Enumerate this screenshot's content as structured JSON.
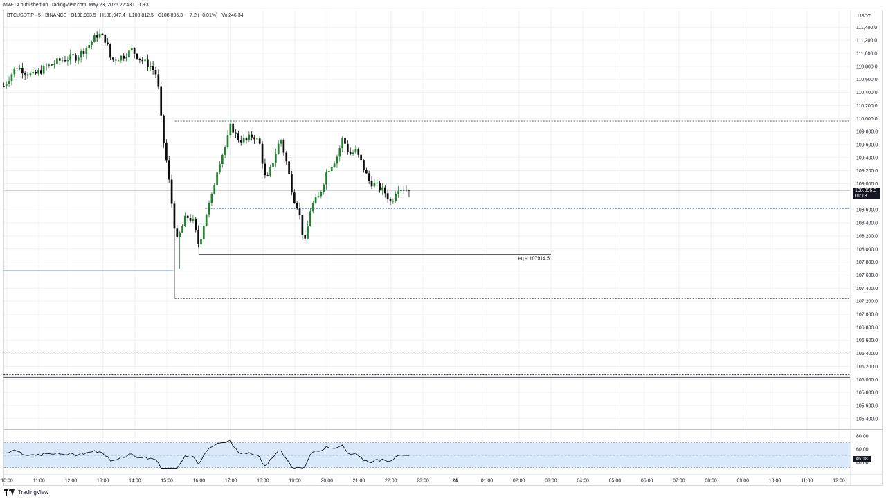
{
  "publisher_line": "MW-TA published on TradingView.com, May 23, 2025 22:43 UTC+3",
  "legend": {
    "symbol": "BTCUSDT.P · 5 · BINANCE",
    "open": "O108,903.5",
    "high": "H108,947.4",
    "low": "L108,812.5",
    "close": "C108,896.3",
    "change": "−7.2 (−0.01%)",
    "volume": "Vol246.34"
  },
  "price_axis_unit": "USDT",
  "last_price": {
    "value": "108,896.3",
    "countdown": "01:13"
  },
  "brand": "TradingView",
  "colors": {
    "up": "#22802e",
    "down": "#0c0c0c",
    "osc_band": "#d9e9fb",
    "grid": "#eef0f3"
  },
  "chart_data": {
    "type": "candlestick",
    "interval_minutes": 5,
    "y_range": [
      105200,
      111600
    ],
    "y_ticks": [
      "105,400.0",
      "105,600.0",
      "105,800.0",
      "106,000.0",
      "106,200.0",
      "106,400.0",
      "106,600.0",
      "106,800.0",
      "107,000.0",
      "107,200.0",
      "107,400.0",
      "107,600.0",
      "107,800.0",
      "108,000.0",
      "108,200.0",
      "108,400.0",
      "108,600.0",
      "109,000.0",
      "109,200.0",
      "109,400.0",
      "109,600.0",
      "109,800.0",
      "110,000.0",
      "110,200.0",
      "110,400.0",
      "110,600.0",
      "110,800.0",
      "111,000.0",
      "111,200.0",
      "111,400.0"
    ],
    "x_ticks": [
      {
        "label": "10:00",
        "t": 10
      },
      {
        "label": "11:00",
        "t": 11
      },
      {
        "label": "12:00",
        "t": 12
      },
      {
        "label": "13:00",
        "t": 13
      },
      {
        "label": "14:00",
        "t": 14
      },
      {
        "label": "15:00",
        "t": 15
      },
      {
        "label": "16:00",
        "t": 16
      },
      {
        "label": "17:00",
        "t": 17
      },
      {
        "label": "18:00",
        "t": 18
      },
      {
        "label": "19:00",
        "t": 19
      },
      {
        "label": "20:00",
        "t": 20
      },
      {
        "label": "21:00",
        "t": 21
      },
      {
        "label": "22:00",
        "t": 22
      },
      {
        "label": "23:00",
        "t": 23
      },
      {
        "label": "24",
        "t": 24
      },
      {
        "label": "01:00",
        "t": 25
      },
      {
        "label": "02:00",
        "t": 26
      },
      {
        "label": "03:00",
        "t": 27
      },
      {
        "label": "04:00",
        "t": 28
      },
      {
        "label": "05:00",
        "t": 29
      },
      {
        "label": "06:00",
        "t": 30
      },
      {
        "label": "07:00",
        "t": 31
      },
      {
        "label": "08:00",
        "t": 32
      },
      {
        "label": "09:00",
        "t": 33
      },
      {
        "label": "10:00",
        "t": 34
      },
      {
        "label": "11:00",
        "t": 35
      },
      {
        "label": "12:00",
        "t": 36
      }
    ],
    "anchors": [
      {
        "t": 9.9,
        "p": 110500
      },
      {
        "t": 10.3,
        "p": 110800
      },
      {
        "t": 10.8,
        "p": 110650
      },
      {
        "t": 11.2,
        "p": 110780
      },
      {
        "t": 11.7,
        "p": 110900
      },
      {
        "t": 12.2,
        "p": 110950
      },
      {
        "t": 12.6,
        "p": 111150
      },
      {
        "t": 12.85,
        "p": 111300
      },
      {
        "t": 13.1,
        "p": 111200
      },
      {
        "t": 13.25,
        "p": 110900
      },
      {
        "t": 13.6,
        "p": 110950
      },
      {
        "t": 13.9,
        "p": 111050
      },
      {
        "t": 14.2,
        "p": 110900
      },
      {
        "t": 14.5,
        "p": 110800
      },
      {
        "t": 14.7,
        "p": 110650
      },
      {
        "t": 14.85,
        "p": 109800
      },
      {
        "t": 15.0,
        "p": 109300
      },
      {
        "t": 15.15,
        "p": 108700
      },
      {
        "t": 15.3,
        "p": 108100
      },
      {
        "t": 15.45,
        "p": 108300
      },
      {
        "t": 15.6,
        "p": 108500
      },
      {
        "t": 15.8,
        "p": 108450
      },
      {
        "t": 16.0,
        "p": 108050
      },
      {
        "t": 16.2,
        "p": 108500
      },
      {
        "t": 16.4,
        "p": 108800
      },
      {
        "t": 16.6,
        "p": 109300
      },
      {
        "t": 16.85,
        "p": 109600
      },
      {
        "t": 17.0,
        "p": 109900
      },
      {
        "t": 17.2,
        "p": 109700
      },
      {
        "t": 17.45,
        "p": 109650
      },
      {
        "t": 17.7,
        "p": 109750
      },
      {
        "t": 17.9,
        "p": 109600
      },
      {
        "t": 18.1,
        "p": 109000
      },
      {
        "t": 18.35,
        "p": 109400
      },
      {
        "t": 18.55,
        "p": 109700
      },
      {
        "t": 18.75,
        "p": 109300
      },
      {
        "t": 18.95,
        "p": 108800
      },
      {
        "t": 19.1,
        "p": 108650
      },
      {
        "t": 19.3,
        "p": 108050
      },
      {
        "t": 19.5,
        "p": 108650
      },
      {
        "t": 19.75,
        "p": 108800
      },
      {
        "t": 20.0,
        "p": 109200
      },
      {
        "t": 20.3,
        "p": 109400
      },
      {
        "t": 20.5,
        "p": 109700
      },
      {
        "t": 20.7,
        "p": 109450
      },
      {
        "t": 20.9,
        "p": 109500
      },
      {
        "t": 21.1,
        "p": 109300
      },
      {
        "t": 21.3,
        "p": 109050
      },
      {
        "t": 21.6,
        "p": 108950
      },
      {
        "t": 21.85,
        "p": 108850
      },
      {
        "t": 22.0,
        "p": 108700
      },
      {
        "t": 22.2,
        "p": 108950
      },
      {
        "t": 22.45,
        "p": 108920
      },
      {
        "t": 22.6,
        "p": 108896
      }
    ],
    "levels": [
      {
        "name": "range-high",
        "price": 109960,
        "t_start": 15.25,
        "style": "dotted",
        "color": "#555b66"
      },
      {
        "name": "range-low",
        "price": 107240,
        "t_start": 15.25,
        "style": "dotted",
        "color": "#555b66"
      },
      {
        "name": "blue-level",
        "price": 108620,
        "t_start": 16.2,
        "style": "dotted",
        "color": "#5b8de0"
      },
      {
        "name": "blue-level-left",
        "price": 107670,
        "t_start": 9.9,
        "t_end": 15.2,
        "style": "solid",
        "color": "#8fb1e3"
      },
      {
        "name": "support-1",
        "price": 106420,
        "t_start": 9.9,
        "style": "dotted",
        "color": "#131722"
      },
      {
        "name": "support-2",
        "price": 106070,
        "t_start": 9.9,
        "style": "dotted",
        "color": "#131722"
      },
      {
        "name": "support-3",
        "price": 106030,
        "t_start": 9.9,
        "style": "solid",
        "color": "#4a4f5a"
      }
    ],
    "annotation": {
      "text": "eq = 107914.5",
      "price": 107914.5,
      "t_start": 16.0,
      "t_end": 27.0
    },
    "oscillator": {
      "y_range": [
        30,
        90
      ],
      "y_ticks": [
        "80.00",
        "60.00",
        "40.00"
      ],
      "band": [
        32,
        70
      ],
      "value": "46.18"
    }
  }
}
